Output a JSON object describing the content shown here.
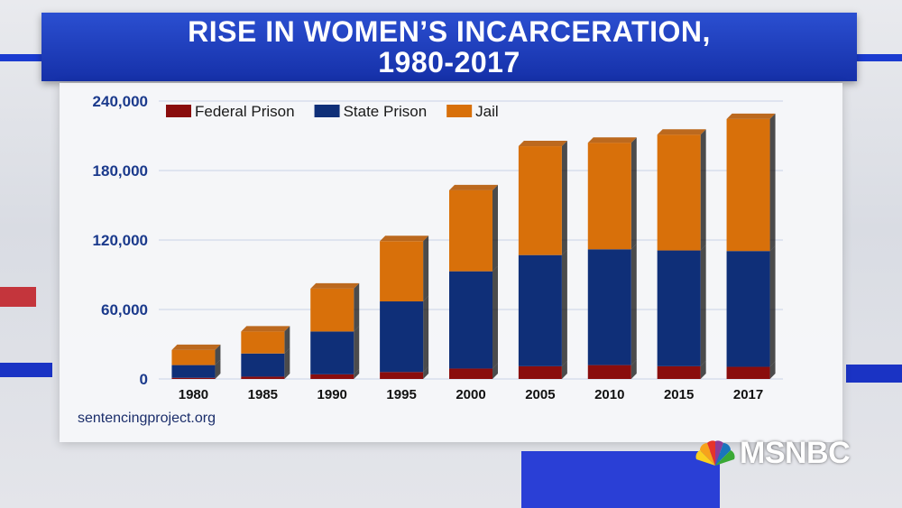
{
  "header": {
    "title_line1": "RISE IN WOMEN’S INCARCERATION,",
    "title_line2": "1980-2017"
  },
  "footer": {
    "source": "sentencingproject.org",
    "network_logo": "MSNBC"
  },
  "colors": {
    "federal": "#8a0d0d",
    "state": "#0f2f78",
    "jail": "#d8700a",
    "axis_text": "#1b3a8c",
    "title_bar": "#1e3fbf"
  },
  "chart_data": {
    "type": "bar",
    "stacked": true,
    "categories": [
      "1980",
      "1985",
      "1990",
      "1995",
      "2000",
      "2005",
      "2010",
      "2015",
      "2017"
    ],
    "series": [
      {
        "name": "Federal Prison",
        "values": [
          1000,
          2000,
          4000,
          6000,
          9000,
          11000,
          12000,
          11000,
          10500
        ]
      },
      {
        "name": "State Prison",
        "values": [
          11000,
          20000,
          37000,
          61000,
          84000,
          96000,
          100000,
          100000,
          100000
        ]
      },
      {
        "name": "Jail",
        "values": [
          13000,
          19000,
          37000,
          52000,
          70000,
          94000,
          92000,
          100000,
          114000
        ]
      }
    ],
    "ylim": [
      0,
      240000
    ],
    "yticks": [
      0,
      60000,
      120000,
      180000,
      240000
    ],
    "ytick_labels": [
      "0",
      "60,000",
      "120,000",
      "180,000",
      "240,000"
    ],
    "legend_position": "top-left",
    "grid": true
  }
}
